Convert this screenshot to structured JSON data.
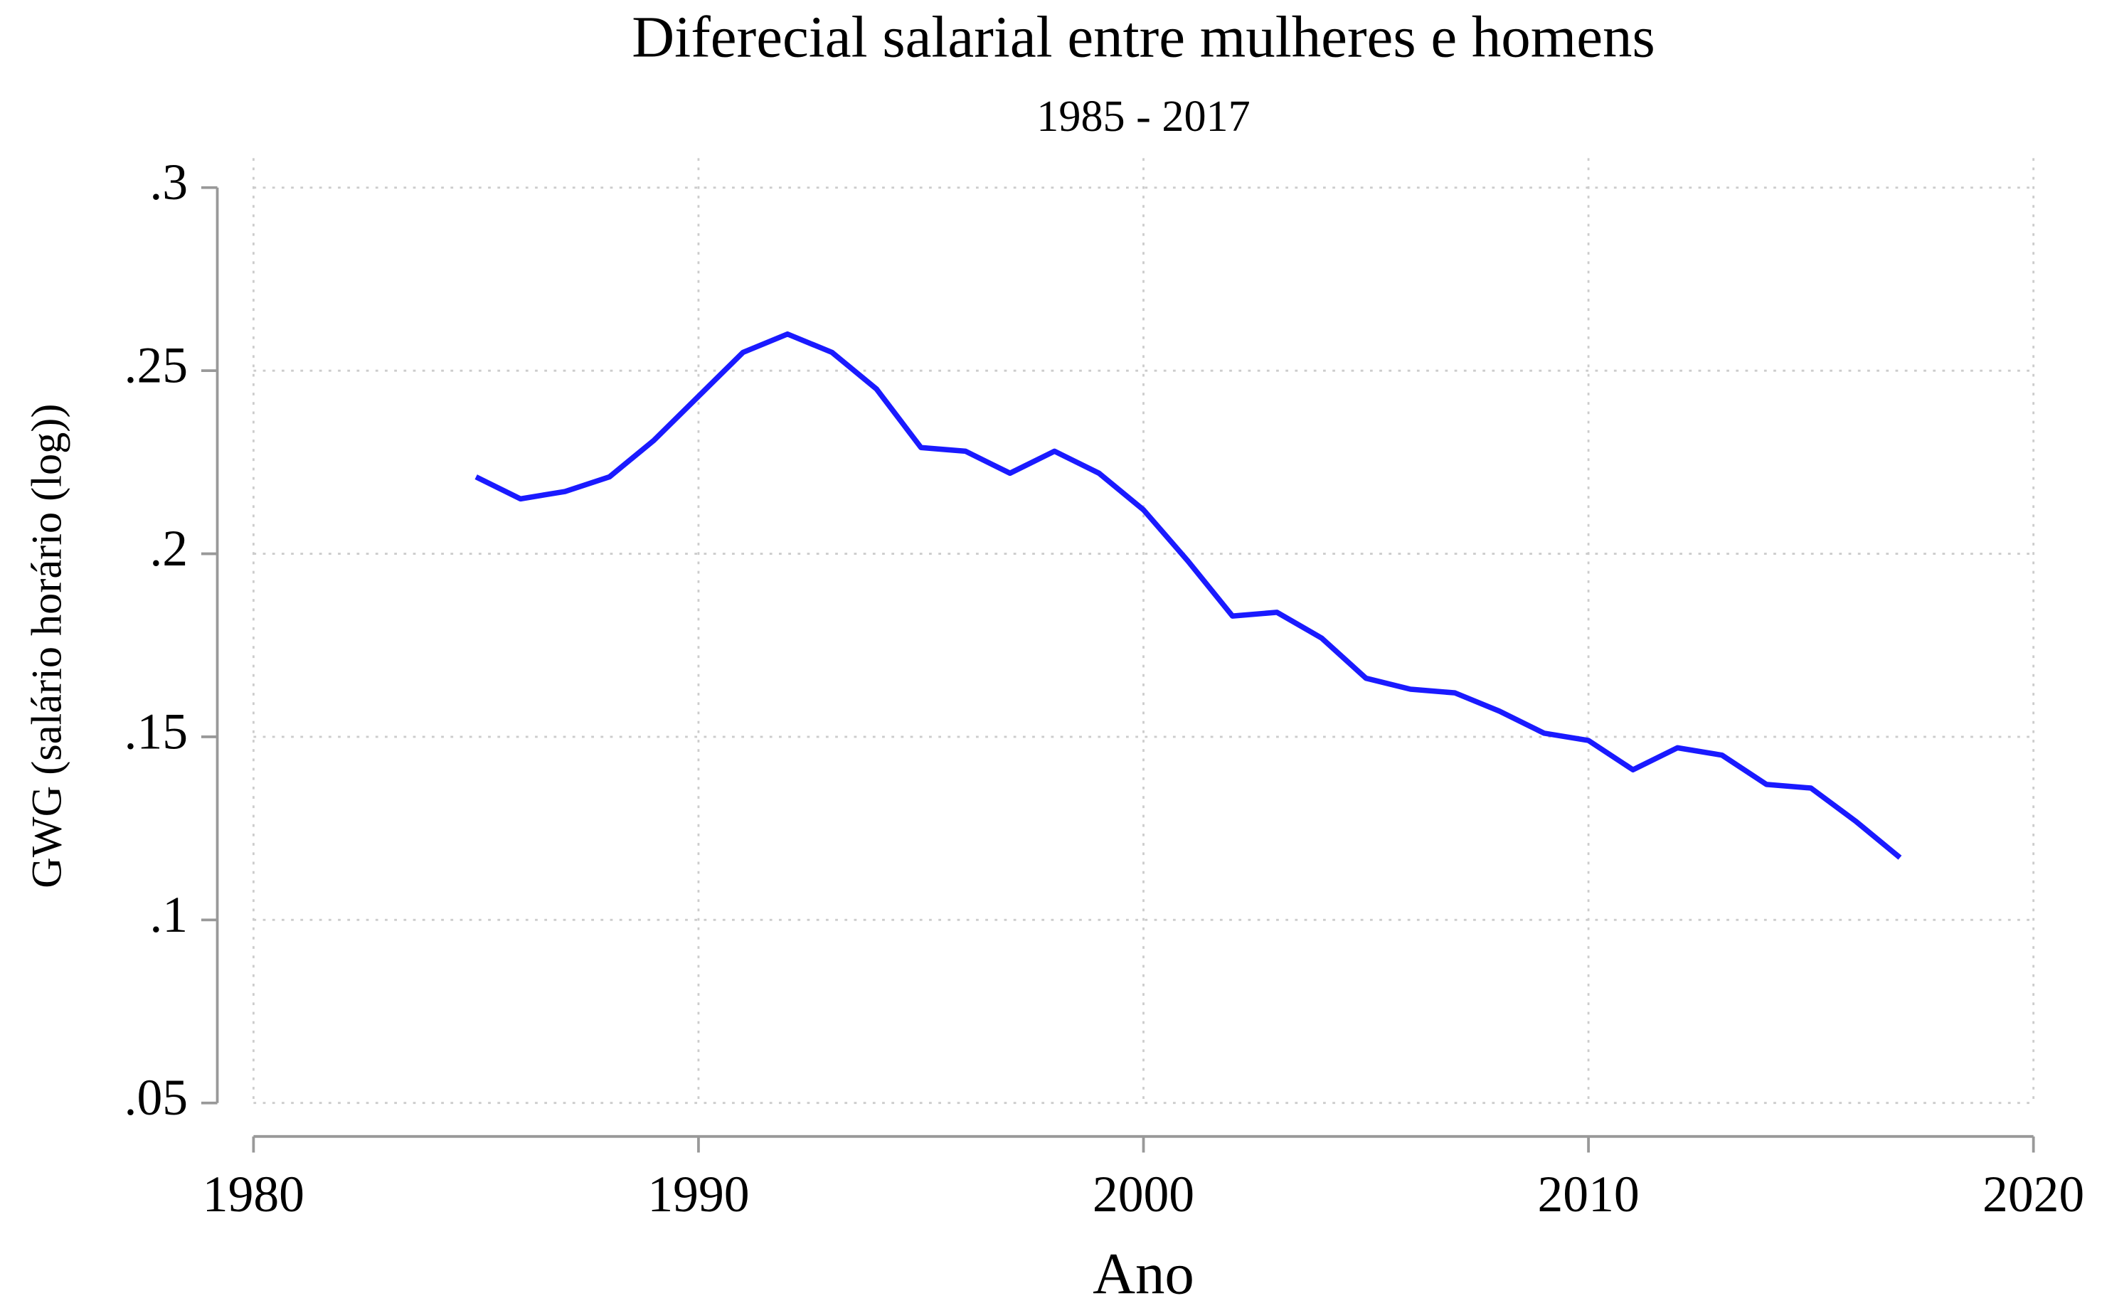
{
  "chart_data": {
    "type": "line",
    "title": "Diferecial salarial entre mulheres e homens",
    "subtitle": "1985 - 2017",
    "x_label": "Ano",
    "y_label": "GWG (salário horário (log))",
    "x": [
      1985,
      1986,
      1987,
      1988,
      1989,
      1990,
      1991,
      1992,
      1993,
      1994,
      1995,
      1996,
      1997,
      1998,
      1999,
      2000,
      2001,
      2002,
      2003,
      2004,
      2005,
      2006,
      2007,
      2008,
      2009,
      2010,
      2011,
      2012,
      2013,
      2014,
      2015,
      2016,
      2017
    ],
    "series": [
      {
        "color": "#1a1aff",
        "values": [
          0.221,
          0.215,
          0.217,
          0.221,
          0.231,
          0.243,
          0.255,
          0.26,
          0.255,
          0.245,
          0.229,
          0.228,
          0.222,
          0.228,
          0.222,
          0.212,
          0.198,
          0.183,
          0.184,
          0.177,
          0.166,
          0.163,
          0.162,
          0.157,
          0.151,
          0.149,
          0.141,
          0.147,
          0.145,
          0.137,
          0.136,
          0.127,
          0.117
        ]
      }
    ],
    "xlim": [
      1980,
      2020
    ],
    "xticks": [
      1980,
      1990,
      2000,
      2010,
      2020
    ],
    "ylim": [
      0.05,
      0.3
    ],
    "yticks": [
      {
        "value": 0.05,
        "label": ".05"
      },
      {
        "value": 0.1,
        "label": ".1"
      },
      {
        "value": 0.15,
        "label": ".15"
      },
      {
        "value": 0.2,
        "label": ".2"
      },
      {
        "value": 0.25,
        "label": ".25"
      },
      {
        "value": 0.3,
        "label": ".3"
      }
    ],
    "grid": true
  }
}
